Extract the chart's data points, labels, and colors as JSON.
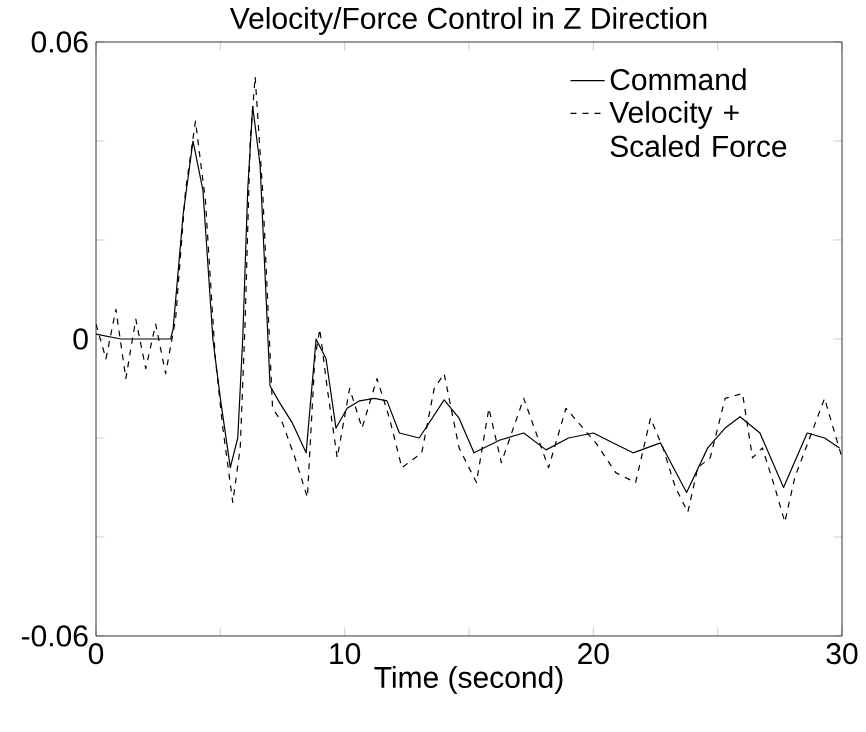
{
  "chart_data": {
    "type": "line",
    "title": "Velocity/Force Control in Z Direction",
    "xlabel": "Time (second)",
    "xlim": [
      0,
      30
    ],
    "ylim": [
      -0.06,
      0.06
    ],
    "xticks": [
      0,
      {
        "value": 5,
        "label": null
      },
      10,
      {
        "value": 15,
        "label": null
      },
      20,
      {
        "value": 25,
        "label": null
      },
      30
    ],
    "yticks": [
      -0.06,
      {
        "value": -0.04,
        "label": null
      },
      {
        "value": -0.02,
        "label": null
      },
      0,
      {
        "value": 0.02,
        "label": null
      },
      {
        "value": 0.04,
        "label": null
      },
      0.06
    ],
    "legend": "top right",
    "grid": false,
    "series": [
      {
        "name": "Command",
        "color": "#000000",
        "line_style": "solid",
        "x": [
          0,
          1,
          2,
          3,
          3.1,
          3.5,
          3.9,
          4.3,
          4.7,
          5.0,
          5.4,
          5.7,
          5.9,
          6.1,
          6.3,
          6.6,
          7.0,
          7.4,
          7.9,
          8.45,
          8.85,
          9.25,
          9.65,
          10.1,
          10.6,
          11.2,
          11.7,
          12.2,
          13.0,
          14.0,
          14.6,
          15.2,
          16.25,
          17.2,
          18.1,
          19.0,
          20.0,
          20.8,
          21.6,
          22.7,
          23.75,
          24.6,
          25.3,
          25.9,
          26.7,
          27.65,
          28.6,
          29.3,
          29.9
        ],
        "values": [
          0.001,
          0.0,
          0.0,
          0.0,
          0.002,
          0.025,
          0.04,
          0.03,
          0.0,
          -0.012,
          -0.026,
          -0.02,
          0.0,
          0.03,
          0.047,
          0.035,
          -0.0095,
          -0.013,
          -0.017,
          -0.023,
          0.0,
          -0.004,
          -0.018,
          -0.014,
          -0.0125,
          -0.012,
          -0.0125,
          -0.019,
          -0.02,
          -0.0123,
          -0.016,
          -0.023,
          -0.0204,
          -0.019,
          -0.0224,
          -0.02,
          -0.019,
          -0.021,
          -0.023,
          -0.021,
          -0.031,
          -0.022,
          -0.018,
          -0.0157,
          -0.019,
          -0.03,
          -0.019,
          -0.02,
          -0.022
        ]
      },
      {
        "name": "Velocity + Scaled Force",
        "color": "#000000",
        "line_style": "dashed",
        "x": [
          0,
          0.4,
          0.8,
          1.2,
          1.6,
          2.0,
          2.4,
          2.8,
          3.2,
          3.6,
          4.0,
          4.4,
          4.8,
          5.1,
          5.5,
          5.8,
          6.0,
          6.2,
          6.4,
          6.7,
          7.1,
          7.5,
          8.0,
          8.5,
          8.8,
          9.0,
          9.3,
          9.7,
          10.2,
          10.7,
          11.3,
          11.8,
          12.3,
          13.1,
          13.6,
          14.0,
          14.6,
          15.3,
          15.8,
          16.3,
          17.2,
          18.2,
          18.9,
          20.1,
          20.9,
          21.7,
          22.3,
          22.8,
          23.3,
          23.8,
          24.2,
          24.7,
          25.3,
          26.0,
          26.4,
          26.8,
          27.3,
          27.7,
          28.1,
          28.7,
          29.3,
          30
        ],
        "values": [
          0.003,
          -0.004,
          0.006,
          -0.008,
          0.004,
          -0.006,
          0.003,
          -0.007,
          0.004,
          0.03,
          0.044,
          0.028,
          -0.004,
          -0.018,
          -0.033,
          -0.022,
          0.004,
          0.04,
          0.053,
          0.03,
          -0.014,
          -0.017,
          -0.024,
          -0.032,
          -0.004,
          0.002,
          -0.01,
          -0.024,
          -0.01,
          -0.018,
          -0.008,
          -0.016,
          -0.026,
          -0.023,
          -0.01,
          -0.007,
          -0.022,
          -0.029,
          -0.014,
          -0.025,
          -0.012,
          -0.026,
          -0.014,
          -0.021,
          -0.027,
          -0.029,
          -0.016,
          -0.022,
          -0.03,
          -0.035,
          -0.026,
          -0.024,
          -0.012,
          -0.011,
          -0.024,
          -0.022,
          -0.03,
          -0.037,
          -0.028,
          -0.02,
          -0.012,
          -0.024
        ]
      }
    ]
  }
}
